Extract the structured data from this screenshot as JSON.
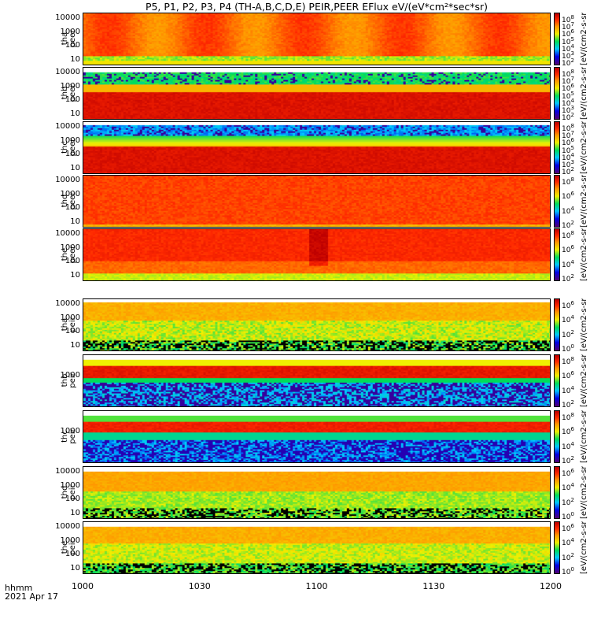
{
  "title": "P5, P1, P2, P3, P4 (TH-A,B,C,D,E) PEIR,PEER EFlux eV/(eV*cm²*sec*sr)",
  "colorbar_unit": "[eV/(cm2-s-sr-eV)] Eflux, (eV/(cm^2*s*sr*eV))",
  "xaxis": {
    "label_top": "hhmm",
    "label_date": "2021 Apr 17",
    "ticks": [
      "1000",
      "1030",
      "1100",
      "1130",
      "1200"
    ]
  },
  "chart_data": {
    "type": "heatmap",
    "title": "P5, P1, P2, P3, P4 (TH-A,B,C,D,E) PEIR,PEER EFlux eV/(eV*cm²*sec*sr)",
    "x": {
      "start": "10:00",
      "end": "12:00",
      "date": "2021 Apr 17",
      "tick_labels": [
        "1000",
        "1030",
        "1100",
        "1130",
        "1200"
      ]
    },
    "colormap": "rainbow (purple-blue-cyan-green-yellow-red)",
    "yscale": "log",
    "panels": [
      {
        "probe": "tha",
        "species": "peer",
        "ylabel": [
          "tha",
          "peer"
        ],
        "yticks": [
          "10000",
          "1000",
          "100",
          "10"
        ],
        "cbar_ticks": [
          "10^8",
          "10^7",
          "10^6",
          "10^5",
          "10^4",
          "10^3",
          "10^2"
        ],
        "dominant": "red at high energy, green band below 20 eV"
      },
      {
        "probe": "thb",
        "species": "peer",
        "ylabel": [
          "thb",
          "peer"
        ],
        "yticks": [
          "10000",
          "1000",
          "100",
          "10"
        ],
        "cbar_ticks": [
          "10^8",
          "10^7",
          "10^6",
          "10^5",
          "10^4",
          "10^3",
          "10^2"
        ],
        "dominant": "dark red below 100 eV, cyan/green above 3000 eV"
      },
      {
        "probe": "thc",
        "species": "peer",
        "ylabel": [
          "thc",
          "peer"
        ],
        "yticks": [
          "10000",
          "1000",
          "100",
          "10"
        ],
        "cbar_ticks": [
          "10^8",
          "10^7",
          "10^6",
          "10^5",
          "10^4",
          "10^3",
          "10^2"
        ],
        "dominant": "dark red below 100 eV, blue above 3000 eV"
      },
      {
        "probe": "thd",
        "species": "peer",
        "ylabel": [
          "thd",
          "peer"
        ],
        "yticks": [
          "10000",
          "1000",
          "100",
          "10"
        ],
        "cbar_ticks": [
          "10^8",
          "10^6",
          "10^4",
          "10^2"
        ],
        "dominant": "red across energies"
      },
      {
        "probe": "the",
        "species": "peer",
        "ylabel": [
          "the",
          "peer"
        ],
        "yticks": [
          "10000",
          "1000",
          "100",
          "10"
        ],
        "cbar_ticks": [
          "10^8",
          "10^6",
          "10^4",
          "10^2"
        ],
        "dominant": "red, intensification near 1100"
      },
      {
        "probe": "tha",
        "species": "peir",
        "ylabel": [
          "tha",
          "peir"
        ],
        "yticks": [
          "10000",
          "1000",
          "100",
          "10"
        ],
        "cbar_ticks": [
          "10^6",
          "10^4",
          "10^2",
          "10^0"
        ],
        "dominant": "orange/yellow high energy, noisy low energy"
      },
      {
        "probe": "thb",
        "species": "peir",
        "ylabel": [
          "thb",
          "peir"
        ],
        "yticks": [
          "1000"
        ],
        "cbar_ticks": [
          "10^8",
          "10^6",
          "10^4",
          "10^2"
        ],
        "dominant": "red band near 1000 eV, blue below"
      },
      {
        "probe": "thc",
        "species": "peir",
        "ylabel": [
          "thc",
          "peir"
        ],
        "yticks": [
          "1000"
        ],
        "cbar_ticks": [
          "10^8",
          "10^6",
          "10^4",
          "10^2"
        ],
        "dominant": "red band near 1000 eV, blue below"
      },
      {
        "probe": "thd",
        "species": "peir",
        "ylabel": [
          "thd",
          "peir"
        ],
        "yticks": [
          "10000",
          "1000",
          "100",
          "10"
        ],
        "cbar_ticks": [
          "10^6",
          "10^4",
          "10^2",
          "10^0"
        ],
        "dominant": "orange/yellow high energy, green low energy"
      },
      {
        "probe": "the",
        "species": "peir",
        "ylabel": [
          "the",
          "peir"
        ],
        "yticks": [
          "10000",
          "1000",
          "100",
          "10"
        ],
        "cbar_ticks": [
          "10^6",
          "10^4",
          "10^2",
          "10^0"
        ],
        "dominant": "orange/yellow high energy, noisy low energy"
      }
    ]
  }
}
